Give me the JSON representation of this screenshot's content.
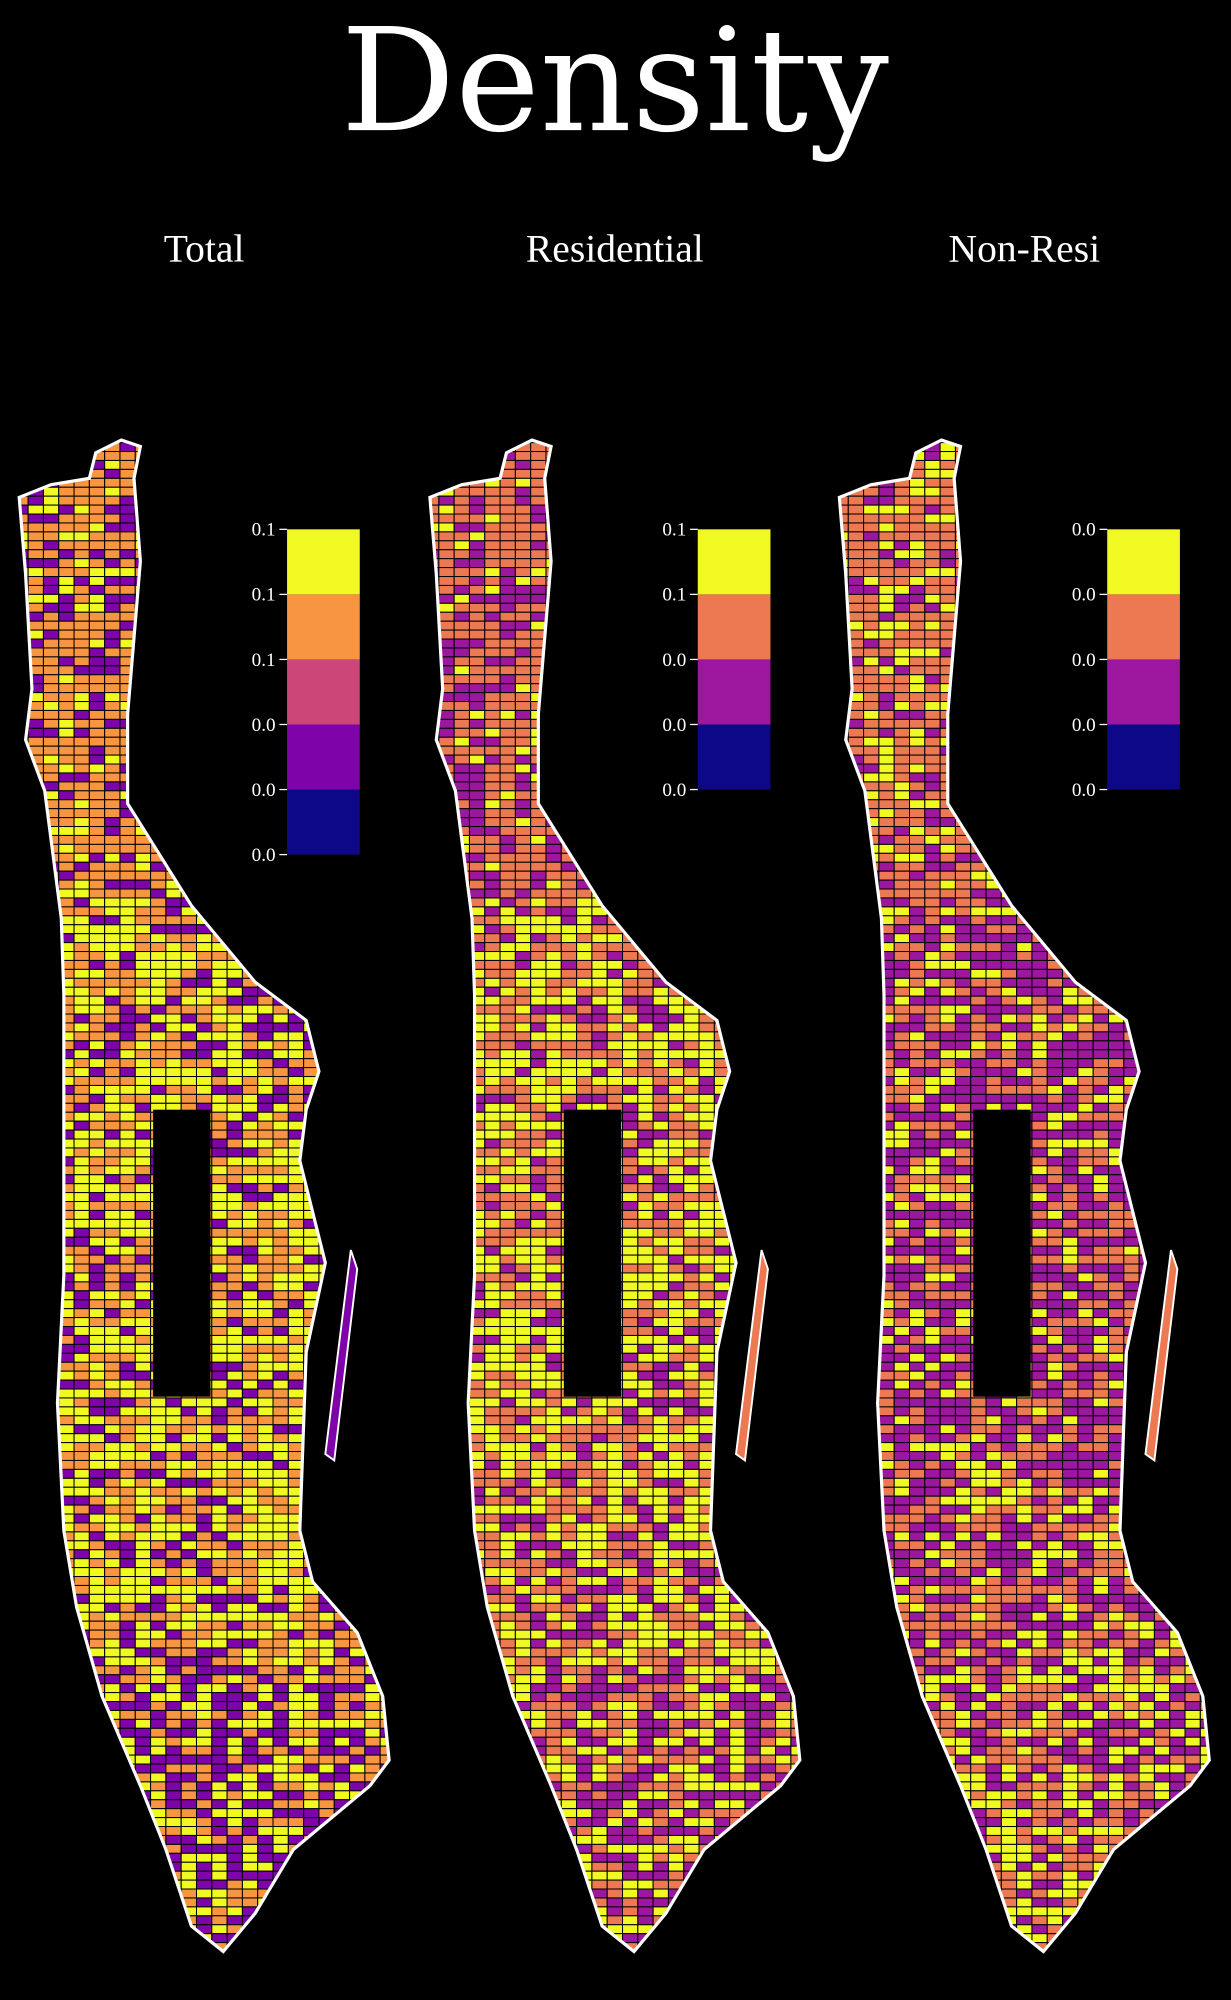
{
  "title": "Density",
  "panels": [
    {
      "label": "Total",
      "legend": {
        "colors": [
          "#f0f921",
          "#f89540",
          "#cc4778",
          "#7e03a8",
          "#0d0887"
        ],
        "ticks": [
          "0.1",
          "0.1",
          "0.1",
          "0.0",
          "0.0",
          "0.0"
        ]
      },
      "dominant_colors": [
        "#f0f921",
        "#f89540",
        "#cc4778",
        "#7e03a8"
      ]
    },
    {
      "label": "Residential",
      "legend": {
        "colors": [
          "#f0f921",
          "#ed7953",
          "#9c179e",
          "#0d0887"
        ],
        "ticks": [
          "0.1",
          "0.1",
          "0.0",
          "0.0",
          "0.0"
        ]
      },
      "dominant_colors": [
        "#f0f921",
        "#ed7953",
        "#9c179e"
      ]
    },
    {
      "label": "Non-Resi",
      "legend": {
        "colors": [
          "#f0f921",
          "#ed7953",
          "#9c179e",
          "#0d0887"
        ],
        "ticks": [
          "0.0",
          "0.0",
          "0.0",
          "0.0",
          "0.0"
        ]
      },
      "dominant_colors": [
        "#9c179e",
        "#ed7953",
        "#f0f921"
      ]
    }
  ],
  "colors": {
    "background": "#000000",
    "outline": "#ffffff",
    "block_edge": "#000000"
  }
}
